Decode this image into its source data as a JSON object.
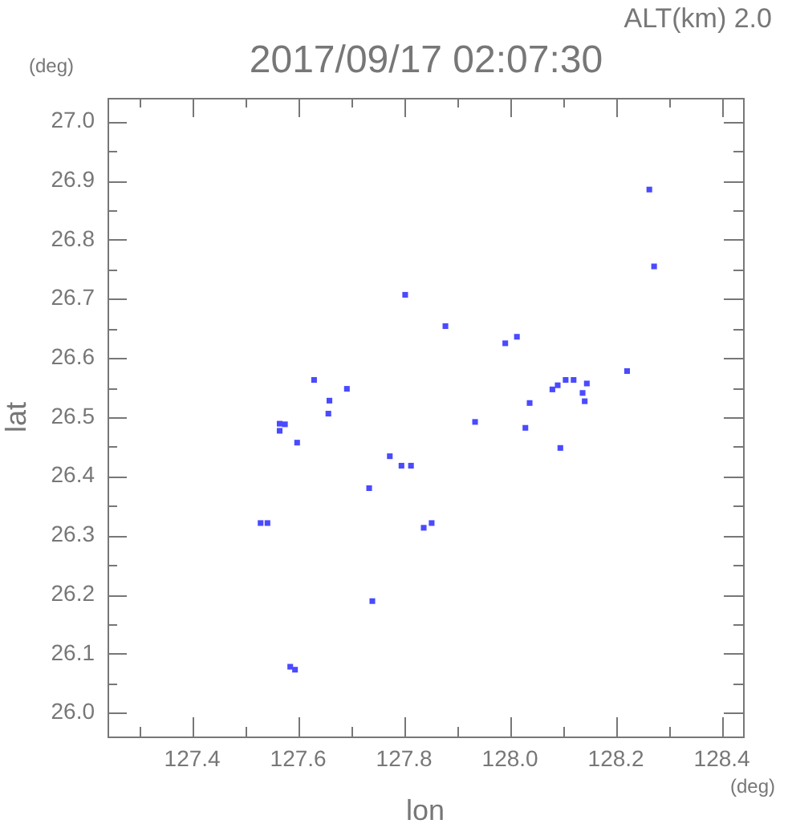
{
  "chart_data": {
    "type": "scatter",
    "title": "2017/09/17 02:07:30",
    "xlabel": "lon",
    "ylabel": "lat",
    "annotations": [
      "ALT(km) 2.0",
      "(deg)",
      "(deg)"
    ],
    "xlim": [
      127.24,
      128.44
    ],
    "ylim": [
      25.96,
      27.04
    ],
    "xticks": [
      {
        "value": 127.3,
        "label": null
      },
      127.4,
      {
        "value": 127.5,
        "label": null
      },
      127.6,
      {
        "value": 127.7,
        "label": null
      },
      127.8,
      {
        "value": 127.9,
        "label": null
      },
      {
        "value": 128,
        "label": "128.0"
      },
      {
        "value": 128.1,
        "label": null
      },
      128.2,
      {
        "value": 128.3,
        "label": null
      },
      128.4
    ],
    "yticks": [
      {
        "value": 26,
        "label": "26.0"
      },
      {
        "value": 26.05,
        "label": null
      },
      26.1,
      {
        "value": 26.15,
        "label": null
      },
      26.2,
      {
        "value": 26.25,
        "label": null
      },
      26.3,
      {
        "value": 26.35,
        "label": null
      },
      26.4,
      {
        "value": 26.45,
        "label": null
      },
      26.5,
      {
        "value": 26.55,
        "label": null
      },
      26.6,
      {
        "value": 26.65,
        "label": null
      },
      26.7,
      {
        "value": 26.75,
        "label": null
      },
      26.8,
      {
        "value": 26.85,
        "label": null
      },
      26.9,
      {
        "value": 26.95,
        "label": null
      },
      {
        "value": 27,
        "label": "27.0"
      }
    ],
    "marker": "square",
    "series": [
      {
        "color": "#4a4aff",
        "x": [
          127.802,
          127.878,
          127.63,
          127.692,
          127.659,
          127.657,
          127.934,
          127.565,
          127.575,
          127.565,
          127.598,
          127.773,
          127.795,
          127.813,
          127.734,
          127.529,
          127.542,
          127.837,
          127.852,
          127.74,
          127.585,
          127.594,
          128.263,
          128.272,
          127.991,
          128.013,
          128.105,
          128.12,
          128.09,
          128.145,
          128.137,
          128.141,
          128.221,
          128.037,
          128.029,
          128.095,
          128.08
        ],
        "values": [
          26.707,
          26.654,
          26.563,
          26.548,
          26.528,
          26.506,
          26.492,
          26.489,
          26.488,
          26.477,
          26.457,
          26.434,
          26.418,
          26.418,
          26.38,
          26.321,
          26.321,
          26.313,
          26.321,
          26.189,
          26.078,
          26.073,
          26.885,
          26.755,
          26.625,
          26.636,
          26.563,
          26.563,
          26.554,
          26.557,
          26.541,
          26.527,
          26.578,
          26.524,
          26.482,
          26.448,
          26.547
        ]
      }
    ]
  }
}
